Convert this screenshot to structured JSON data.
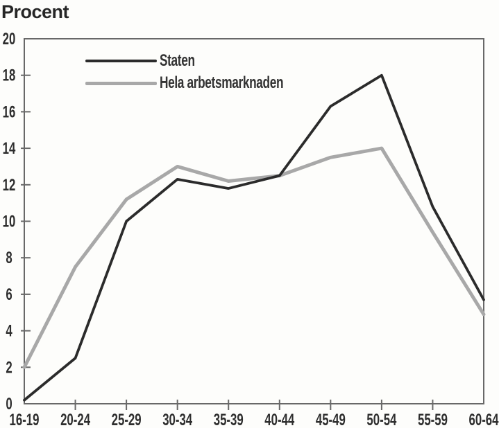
{
  "page": {
    "title": "Procent"
  },
  "chart_data": {
    "type": "line",
    "title": "Procent",
    "ylabel": "Procent",
    "xlabel": "",
    "categories": [
      "16-19",
      "20-24",
      "25-29",
      "30-34",
      "35-39",
      "40-44",
      "45-49",
      "50-54",
      "55-59",
      "60-64"
    ],
    "series": [
      {
        "name": "Staten",
        "color": "#2b2b2b",
        "stroke_width": 3.8,
        "values": [
          0.2,
          2.5,
          10.0,
          12.3,
          11.8,
          12.5,
          16.3,
          18.0,
          10.8,
          5.7
        ]
      },
      {
        "name": "Hela arbetsmarknaden",
        "color": "#a8a8a8",
        "stroke_width": 5,
        "values": [
          2.0,
          7.5,
          11.2,
          13.0,
          12.2,
          12.5,
          13.5,
          14.0,
          9.4,
          4.9
        ]
      }
    ],
    "ylim": [
      0,
      20
    ],
    "ytick_step": 2,
    "grid": false,
    "legend_position": "inside-top-left",
    "axis_color": "#686868",
    "text_color": "#2e2e2e"
  }
}
